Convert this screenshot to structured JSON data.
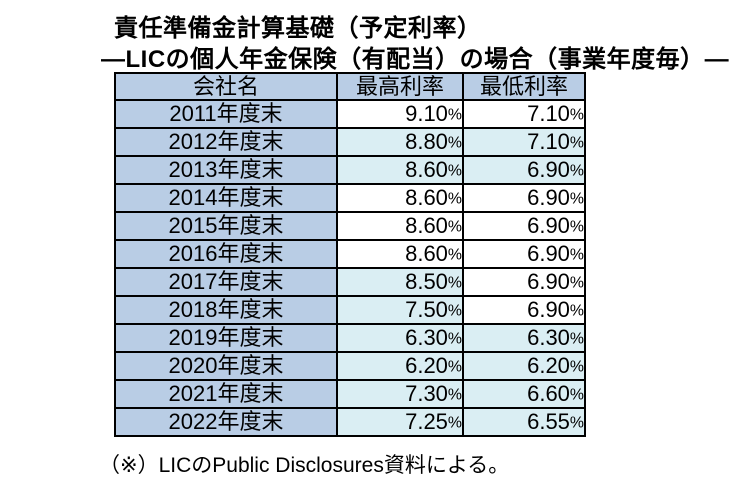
{
  "title": {
    "line1": "責任準備金計算基礎（予定利率）",
    "line2": "—LICの個人年金保険（有配当）の場合（事業年度毎）—"
  },
  "table": {
    "headers": [
      "会社名",
      "最高利率",
      "最低利率"
    ],
    "percent_sign": "%",
    "rows": [
      {
        "label": "2011年度末",
        "max": "9.10",
        "min": "7.10",
        "max_hl": false,
        "min_hl": false
      },
      {
        "label": "2012年度末",
        "max": "8.80",
        "min": "7.10",
        "max_hl": true,
        "min_hl": true
      },
      {
        "label": "2013年度末",
        "max": "8.60",
        "min": "6.90",
        "max_hl": true,
        "min_hl": true
      },
      {
        "label": "2014年度末",
        "max": "8.60",
        "min": "6.90",
        "max_hl": false,
        "min_hl": false
      },
      {
        "label": "2015年度末",
        "max": "8.60",
        "min": "6.90",
        "max_hl": false,
        "min_hl": false
      },
      {
        "label": "2016年度末",
        "max": "8.60",
        "min": "6.90",
        "max_hl": false,
        "min_hl": false
      },
      {
        "label": "2017年度末",
        "max": "8.50",
        "min": "6.90",
        "max_hl": true,
        "min_hl": false
      },
      {
        "label": "2018年度末",
        "max": "7.50",
        "min": "6.90",
        "max_hl": true,
        "min_hl": false
      },
      {
        "label": "2019年度末",
        "max": "6.30",
        "min": "6.30",
        "max_hl": true,
        "min_hl": true
      },
      {
        "label": "2020年度末",
        "max": "6.20",
        "min": "6.20",
        "max_hl": true,
        "min_hl": true
      },
      {
        "label": "2021年度末",
        "max": "7.30",
        "min": "6.60",
        "max_hl": true,
        "min_hl": true
      },
      {
        "label": "2022年度末",
        "max": "7.25",
        "min": "6.55",
        "max_hl": true,
        "min_hl": true
      }
    ]
  },
  "footnote": "（※）LICのPublic Disclosures資料による。",
  "colors": {
    "header_bg": "#b9cde5",
    "year_column_bg": "#b9cde5",
    "highlight_cell_bg": "#daeef3",
    "plain_cell_bg": "#ffffff",
    "border": "#000000",
    "text": "#000000"
  },
  "chart_data": {
    "type": "table",
    "title": "責任準備金計算基礎（予定利率）",
    "subtitle": "—LICの個人年金保険（有配当）の場合（事業年度毎）—",
    "columns": [
      "会社名",
      "最高利率",
      "最低利率"
    ],
    "unit": "%",
    "rows": [
      [
        "2011年度末",
        9.1,
        7.1
      ],
      [
        "2012年度末",
        8.8,
        7.1
      ],
      [
        "2013年度末",
        8.6,
        6.9
      ],
      [
        "2014年度末",
        8.6,
        6.9
      ],
      [
        "2015年度末",
        8.6,
        6.9
      ],
      [
        "2016年度末",
        8.6,
        6.9
      ],
      [
        "2017年度末",
        8.5,
        6.9
      ],
      [
        "2018年度末",
        7.5,
        6.9
      ],
      [
        "2019年度末",
        6.3,
        6.3
      ],
      [
        "2020年度末",
        6.2,
        6.2
      ],
      [
        "2021年度末",
        7.3,
        6.6
      ],
      [
        "2022年度末",
        7.25,
        6.55
      ]
    ],
    "footnote": "（※）LICのPublic Disclosures資料による。"
  }
}
